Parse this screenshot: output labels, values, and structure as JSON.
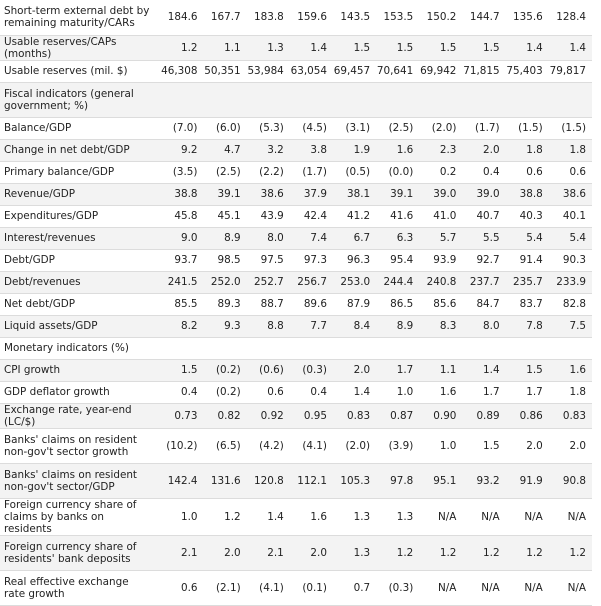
{
  "rows": [
    {
      "label": "Short-term external debt by remaining maturity/CARs",
      "values": [
        "184.6",
        "167.7",
        "183.8",
        "159.6",
        "143.5",
        "153.5",
        "150.2",
        "144.7",
        "135.6",
        "128.4"
      ]
    },
    {
      "label": "Usable reserves/CAPs (months)",
      "values": [
        "1.2",
        "1.1",
        "1.3",
        "1.4",
        "1.5",
        "1.5",
        "1.5",
        "1.5",
        "1.4",
        "1.4"
      ]
    },
    {
      "label": "Usable reserves (mil. $)",
      "values": [
        "46,308",
        "50,351",
        "53,984",
        "63,054",
        "69,457",
        "70,641",
        "69,942",
        "71,815",
        "75,403",
        "79,817"
      ]
    },
    {
      "label": "Fiscal indicators (general government; %)",
      "values": [
        "",
        "",
        "",
        "",
        "",
        "",
        "",
        "",
        "",
        ""
      ]
    },
    {
      "label": "Balance/GDP",
      "values": [
        "(7.0)",
        "(6.0)",
        "(5.3)",
        "(4.5)",
        "(3.1)",
        "(2.5)",
        "(2.0)",
        "(1.7)",
        "(1.5)",
        "(1.5)"
      ]
    },
    {
      "label": "Change in net debt/GDP",
      "values": [
        "9.2",
        "4.7",
        "3.2",
        "3.8",
        "1.9",
        "1.6",
        "2.3",
        "2.0",
        "1.8",
        "1.8"
      ]
    },
    {
      "label": "Primary balance/GDP",
      "values": [
        "(3.5)",
        "(2.5)",
        "(2.2)",
        "(1.7)",
        "(0.5)",
        "(0.0)",
        "0.2",
        "0.4",
        "0.6",
        "0.6"
      ]
    },
    {
      "label": "Revenue/GDP",
      "values": [
        "38.8",
        "39.1",
        "38.6",
        "37.9",
        "38.1",
        "39.1",
        "39.0",
        "39.0",
        "38.8",
        "38.6"
      ]
    },
    {
      "label": "Expenditures/GDP",
      "values": [
        "45.8",
        "45.1",
        "43.9",
        "42.4",
        "41.2",
        "41.6",
        "41.0",
        "40.7",
        "40.3",
        "40.1"
      ]
    },
    {
      "label": "Interest/revenues",
      "values": [
        "9.0",
        "8.9",
        "8.0",
        "7.4",
        "6.7",
        "6.3",
        "5.7",
        "5.5",
        "5.4",
        "5.4"
      ]
    },
    {
      "label": "Debt/GDP",
      "values": [
        "93.7",
        "98.5",
        "97.5",
        "97.3",
        "96.3",
        "95.4",
        "93.9",
        "92.7",
        "91.4",
        "90.3"
      ]
    },
    {
      "label": "Debt/revenues",
      "values": [
        "241.5",
        "252.0",
        "252.7",
        "256.7",
        "253.0",
        "244.4",
        "240.8",
        "237.7",
        "235.7",
        "233.9"
      ]
    },
    {
      "label": "Net debt/GDP",
      "values": [
        "85.5",
        "89.3",
        "88.7",
        "89.6",
        "87.9",
        "86.5",
        "85.6",
        "84.7",
        "83.7",
        "82.8"
      ]
    },
    {
      "label": "Liquid assets/GDP",
      "values": [
        "8.2",
        "9.3",
        "8.8",
        "7.7",
        "8.4",
        "8.9",
        "8.3",
        "8.0",
        "7.8",
        "7.5"
      ]
    },
    {
      "label": "Monetary indicators (%)",
      "values": [
        "",
        "",
        "",
        "",
        "",
        "",
        "",
        "",
        "",
        ""
      ]
    },
    {
      "label": "CPI growth",
      "values": [
        "1.5",
        "(0.2)",
        "(0.6)",
        "(0.3)",
        "2.0",
        "1.7",
        "1.1",
        "1.4",
        "1.5",
        "1.6"
      ]
    },
    {
      "label": "GDP deflator growth",
      "values": [
        "0.4",
        "(0.2)",
        "0.6",
        "0.4",
        "1.4",
        "1.0",
        "1.6",
        "1.7",
        "1.7",
        "1.8"
      ]
    },
    {
      "label": "Exchange rate, year-end (LC/$)",
      "values": [
        "0.73",
        "0.82",
        "0.92",
        "0.95",
        "0.83",
        "0.87",
        "0.90",
        "0.89",
        "0.86",
        "0.83"
      ]
    },
    {
      "label": "Banks' claims on resident non-gov't sector growth",
      "values": [
        "(10.2)",
        "(6.5)",
        "(4.2)",
        "(4.1)",
        "(2.0)",
        "(3.9)",
        "1.0",
        "1.5",
        "2.0",
        "2.0"
      ]
    },
    {
      "label": "Banks' claims on resident non-gov't sector/GDP",
      "values": [
        "142.4",
        "131.6",
        "120.8",
        "112.1",
        "105.3",
        "97.8",
        "95.1",
        "93.2",
        "91.9",
        "90.8"
      ]
    },
    {
      "label": "Foreign currency share of claims by banks on residents",
      "values": [
        "1.0",
        "1.2",
        "1.4",
        "1.6",
        "1.3",
        "1.3",
        "N/A",
        "N/A",
        "N/A",
        "N/A"
      ]
    },
    {
      "label": "Foreign currency share of residents' bank deposits",
      "values": [
        "2.1",
        "2.0",
        "2.1",
        "2.0",
        "1.3",
        "1.2",
        "1.2",
        "1.2",
        "1.2",
        "1.2"
      ]
    },
    {
      "label": "Real effective exchange rate growth",
      "values": [
        "0.6",
        "(2.1)",
        "(4.1)",
        "(0.1)",
        "0.7",
        "(0.3)",
        "N/A",
        "N/A",
        "N/A",
        "N/A"
      ]
    }
  ]
}
